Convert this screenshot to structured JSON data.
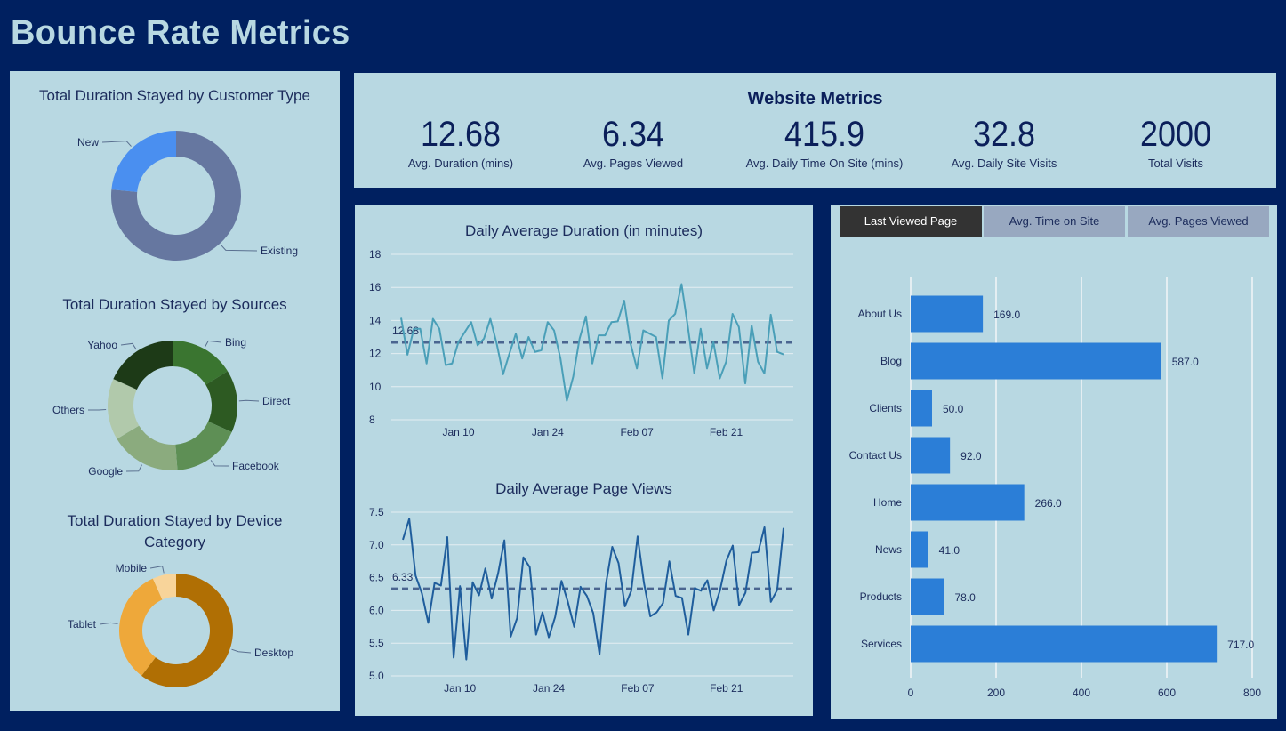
{
  "header": {
    "title": "Bounce Rate Metrics"
  },
  "colors": {
    "background": "#002060",
    "panel": "#b8d8e2",
    "title": "#b8d8e2",
    "text": "#1c2c5c"
  },
  "kpis": {
    "heading": "Website Metrics",
    "items": [
      {
        "value": "12.68",
        "label": "Avg. Duration (mins)"
      },
      {
        "value": "6.34",
        "label": "Avg. Pages Viewed"
      },
      {
        "value": "415.9",
        "label": "Avg. Daily Time On Site (mins)"
      },
      {
        "value": "32.8",
        "label": "Avg. Daily Site Visits"
      },
      {
        "value": "2000",
        "label": "Total Visits"
      }
    ]
  },
  "tabs": [
    {
      "label": "Last Viewed Page",
      "active": true
    },
    {
      "label": "Avg. Time on Site",
      "active": false
    },
    {
      "label": "Avg. Pages Viewed",
      "active": false
    }
  ],
  "chart_data": [
    {
      "type": "pie",
      "variant": "donut",
      "title": "Total Duration Stayed by Customer Type",
      "categories": [
        "Existing",
        "New"
      ],
      "values_percent": [
        76.5,
        23.5
      ],
      "colors": [
        "#6677a0",
        "#4a8ff0"
      ]
    },
    {
      "type": "pie",
      "variant": "donut",
      "title": "Total Duration Stayed by Sources",
      "categories": [
        "Bing",
        "Direct",
        "Facebook",
        "Google",
        "Others",
        "Yahoo"
      ],
      "values_percent": [
        16.1,
        15.6,
        17.1,
        17.6,
        15.3,
        18.3
      ],
      "colors": [
        "#3a7530",
        "#2d5a22",
        "#5e8f55",
        "#8bab7e",
        "#b1c9ab",
        "#1d3a17"
      ]
    },
    {
      "type": "pie",
      "variant": "donut",
      "title": "Total Duration Stayed by Device Category",
      "categories": [
        "Desktop",
        "Tablet",
        "Mobile"
      ],
      "values_percent": [
        60.4,
        32.9,
        6.7
      ],
      "colors": [
        "#b06f04",
        "#eea83a",
        "#f8d49a"
      ]
    },
    {
      "type": "line",
      "title": "Daily Average Duration (in minutes)",
      "xlabel": "",
      "ylabel": "",
      "ylim": [
        8,
        18
      ],
      "yticks": [
        "8",
        "10",
        "12",
        "14",
        "16",
        "18"
      ],
      "xticks": [
        "Jan 10",
        "Jan 24",
        "Feb 07",
        "Feb 21"
      ],
      "grid": true,
      "color": "#4a9fb8",
      "average_line": {
        "value": 12.68,
        "label": "12.68",
        "color": "#4a6590"
      },
      "x": [
        "Jan 01",
        "Jan 02",
        "Jan 03",
        "Jan 04",
        "Jan 05",
        "Jan 06",
        "Jan 07",
        "Jan 08",
        "Jan 09",
        "Jan 10",
        "Jan 11",
        "Jan 12",
        "Jan 13",
        "Jan 14",
        "Jan 15",
        "Jan 16",
        "Jan 17",
        "Jan 18",
        "Jan 19",
        "Jan 20",
        "Jan 21",
        "Jan 22",
        "Jan 23",
        "Jan 24",
        "Jan 25",
        "Jan 26",
        "Jan 27",
        "Jan 28",
        "Jan 29",
        "Jan 30",
        "Jan 31",
        "Feb 01",
        "Feb 02",
        "Feb 03",
        "Feb 04",
        "Feb 05",
        "Feb 06",
        "Feb 07",
        "Feb 08",
        "Feb 09",
        "Feb 10",
        "Feb 11",
        "Feb 12",
        "Feb 13",
        "Feb 14",
        "Feb 15",
        "Feb 16",
        "Feb 17",
        "Feb 18",
        "Feb 19",
        "Feb 20",
        "Feb 21",
        "Feb 22",
        "Feb 23",
        "Feb 24",
        "Feb 25",
        "Feb 26",
        "Feb 27",
        "Feb 28",
        "Mar 01",
        "Mar 02"
      ],
      "y": [
        14.16,
        11.93,
        13.5,
        13.5,
        11.4,
        14.1,
        13.5,
        11.3,
        11.4,
        12.7,
        13.3,
        13.9,
        12.5,
        12.9,
        14.1,
        12.6,
        10.75,
        12.0,
        13.2,
        11.7,
        13.0,
        12.1,
        12.2,
        13.9,
        13.4,
        11.7,
        9.15,
        10.6,
        12.9,
        14.25,
        11.4,
        13.1,
        13.1,
        13.9,
        13.95,
        15.2,
        12.6,
        11.1,
        13.4,
        13.2,
        13.0,
        10.5,
        14.0,
        14.4,
        16.2,
        13.6,
        10.8,
        13.5,
        11.1,
        12.7,
        10.5,
        11.5,
        14.4,
        13.6,
        10.2,
        13.7,
        11.5,
        10.8,
        14.35,
        12.1,
        11.95
      ]
    },
    {
      "type": "line",
      "title": "Daily Average Page Views",
      "xlabel": "",
      "ylabel": "",
      "ylim": [
        5.0,
        7.5
      ],
      "yticks": [
        "5.0",
        "5.5",
        "6.0",
        "6.5",
        "7.0",
        "7.5"
      ],
      "xticks": [
        "Jan 10",
        "Jan 24",
        "Feb 07",
        "Feb 21"
      ],
      "grid": true,
      "color": "#1f5d9c",
      "average_line": {
        "value": 6.33,
        "label": "6.33",
        "color": "#4a6590"
      },
      "x": [
        "Jan 01",
        "Jan 02",
        "Jan 03",
        "Jan 04",
        "Jan 05",
        "Jan 06",
        "Jan 07",
        "Jan 08",
        "Jan 09",
        "Jan 10",
        "Jan 11",
        "Jan 12",
        "Jan 13",
        "Jan 14",
        "Jan 15",
        "Jan 16",
        "Jan 17",
        "Jan 18",
        "Jan 19",
        "Jan 20",
        "Jan 21",
        "Jan 22",
        "Jan 23",
        "Jan 24",
        "Jan 25",
        "Jan 26",
        "Jan 27",
        "Jan 28",
        "Jan 29",
        "Jan 30",
        "Jan 31",
        "Feb 01",
        "Feb 02",
        "Feb 03",
        "Feb 04",
        "Feb 05",
        "Feb 06",
        "Feb 07",
        "Feb 08",
        "Feb 09",
        "Feb 10",
        "Feb 11",
        "Feb 12",
        "Feb 13",
        "Feb 14",
        "Feb 15",
        "Feb 16",
        "Feb 17",
        "Feb 18",
        "Feb 19",
        "Feb 20",
        "Feb 21",
        "Feb 22",
        "Feb 23",
        "Feb 24",
        "Feb 25",
        "Feb 26",
        "Feb 27",
        "Feb 28",
        "Mar 01",
        "Mar 02"
      ],
      "y": [
        7.08,
        7.4,
        6.53,
        6.26,
        5.81,
        6.42,
        6.38,
        7.12,
        5.28,
        6.37,
        5.25,
        6.43,
        6.23,
        6.64,
        6.18,
        6.56,
        7.07,
        5.6,
        5.88,
        6.81,
        6.66,
        5.63,
        5.97,
        5.59,
        5.9,
        6.45,
        6.13,
        5.75,
        6.36,
        6.22,
        5.96,
        5.33,
        6.4,
        6.97,
        6.72,
        6.06,
        6.3,
        7.13,
        6.42,
        5.91,
        5.97,
        6.11,
        6.75,
        6.22,
        6.19,
        5.63,
        6.34,
        6.3,
        6.46,
        6.0,
        6.31,
        6.76,
        6.99,
        6.08,
        6.27,
        6.88,
        6.89,
        7.27,
        6.13,
        6.31,
        7.26
      ]
    },
    {
      "type": "bar",
      "orientation": "horizontal",
      "title": "",
      "categories": [
        "About Us",
        "Blog",
        "Clients",
        "Contact Us",
        "Home",
        "News",
        "Products",
        "Services"
      ],
      "values": [
        169.0,
        587.0,
        50.0,
        92.0,
        266.0,
        41.0,
        78.0,
        717.0
      ],
      "value_labels": [
        "169.0",
        "587.0",
        "50.0",
        "92.0",
        "266.0",
        "41.0",
        "78.0",
        "717.0"
      ],
      "xlim": [
        0,
        800
      ],
      "xticks": [
        "0",
        "200",
        "400",
        "600",
        "800"
      ],
      "grid": true,
      "color": "#2b7ed7"
    }
  ]
}
